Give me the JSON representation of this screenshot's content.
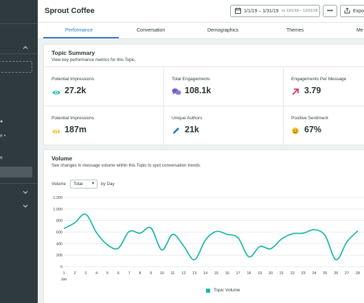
{
  "app": {
    "title": "Sprout Coffee"
  },
  "header": {
    "date_range": "1/1/19 – 1/31/19",
    "compare_range": "vs 12/1/18 – 12/31/18",
    "more_label": "•••",
    "export_label": "Expo"
  },
  "sidebar": {
    "fragments": [
      "e •",
      "e"
    ]
  },
  "tabs": [
    {
      "label": "Performance",
      "active": true
    },
    {
      "label": "Conversation"
    },
    {
      "label": "Demographics"
    },
    {
      "label": "Themes"
    },
    {
      "label": "Me"
    }
  ],
  "topic_summary": {
    "title": "Topic Summary",
    "subtitle": "View key performance metrics for this Topic.",
    "metrics": [
      {
        "label": "Potential Impressions",
        "value": "27.2k",
        "icon": "eye-icon",
        "color": "#1cb8a8"
      },
      {
        "label": "Total Engagements",
        "value": "108.1k",
        "icon": "chat-bubbles-icon",
        "color": "#6e5cc6"
      },
      {
        "label": "Engagements Per Message",
        "value": "3.79",
        "icon": "arrow-up-right-icon",
        "color": "#d0316b"
      },
      {
        "label": "Potential Impressions",
        "value": "187m",
        "icon": "eye-icon",
        "color": "#f2c12e"
      },
      {
        "label": "Unique Authors",
        "value": "21k",
        "icon": "pencil-icon",
        "color": "#2a79c6"
      },
      {
        "label": "Positive Sentiment",
        "value": "67%",
        "icon": "smiley-icon",
        "color": "#f2c12e"
      }
    ]
  },
  "volume": {
    "title": "Volume",
    "subtitle": "See changes in message volume within this Topic to spot conversation trends.",
    "control_label": "Volume",
    "select_value": "Total",
    "by_label": "by Day",
    "legend": "Topic Volume"
  },
  "chart_data": {
    "type": "line",
    "x": [
      1,
      2,
      3,
      4,
      5,
      6,
      7,
      8,
      9,
      10,
      11,
      12,
      13,
      14,
      15,
      16,
      17,
      18,
      19,
      20,
      21,
      22,
      23,
      24,
      25,
      26,
      27,
      28
    ],
    "x_tick_labels": [
      "1",
      "2",
      "3",
      "4",
      "5",
      "6",
      "7",
      "8",
      "9",
      "10",
      "11",
      "12",
      "13",
      "14",
      "15",
      "16",
      "17",
      "18",
      "19",
      "20",
      "21",
      "22",
      "23",
      "24",
      "25",
      "26",
      "27",
      "28"
    ],
    "x_sublabel": "Jan",
    "y_tick_labels": [
      "0",
      "200",
      "400",
      "600",
      "800",
      "1,000",
      "1,200"
    ],
    "ylim": [
      0,
      1200
    ],
    "series": [
      {
        "name": "Topic Volume",
        "color": "#1cb8a8",
        "values": [
          660,
          760,
          910,
          590,
          380,
          320,
          610,
          580,
          670,
          290,
          560,
          360,
          120,
          460,
          610,
          560,
          500,
          170,
          350,
          310,
          480,
          570,
          580,
          640,
          540,
          120,
          430,
          620
        ]
      }
    ],
    "grid": "horizontal",
    "legend_position": "bottom"
  }
}
